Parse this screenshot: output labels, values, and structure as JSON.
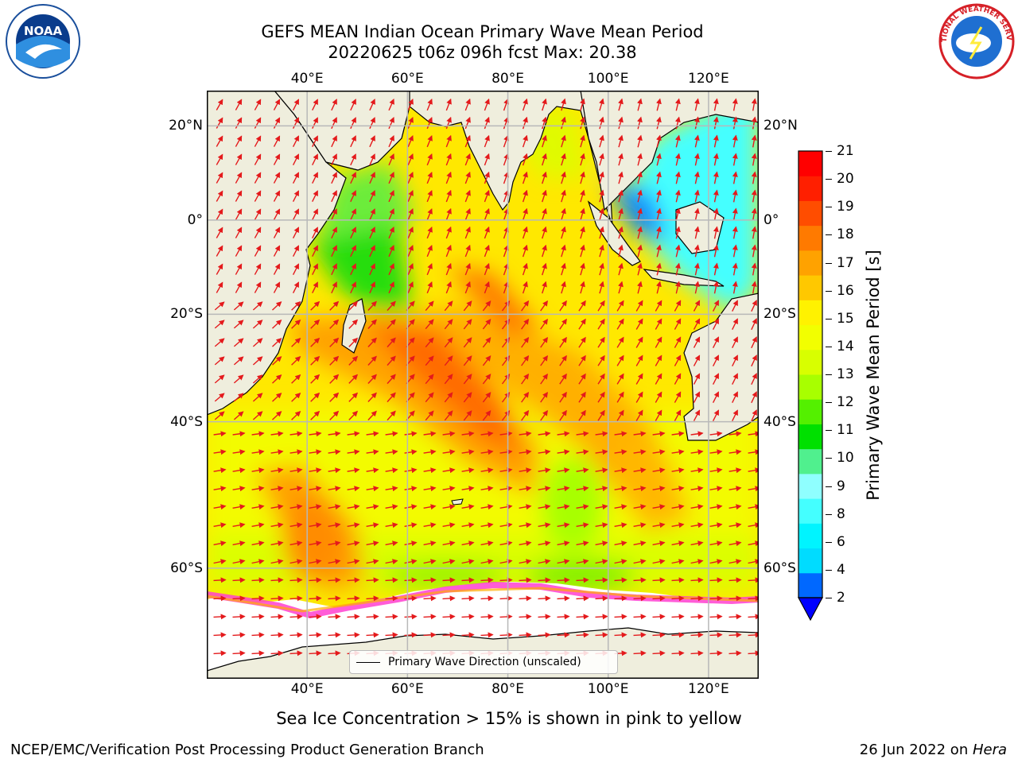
{
  "header": {
    "title_line1": "GEFS MEAN Indian Ocean Primary Wave Mean Period",
    "title_line2": "20220625 t06z 096h fcst   Max: 20.38"
  },
  "logos": {
    "left": "NOAA",
    "right": "NATIONAL WEATHER SERVICE"
  },
  "map": {
    "lon_labels": [
      "40°E",
      "60°E",
      "80°E",
      "100°E",
      "120°E"
    ],
    "lat_labels_left": [
      "20°N",
      "0°",
      "20°S",
      "40°S",
      "60°S"
    ],
    "lat_labels_right": [
      "20°N",
      "0°",
      "20°S",
      "40°S",
      "60°S"
    ],
    "lon_values": [
      40,
      60,
      80,
      100,
      120
    ],
    "lat_values": [
      20,
      0,
      -20,
      -40,
      -60
    ],
    "extent": {
      "lon": [
        20,
        130
      ],
      "lat": [
        -70,
        27
      ]
    },
    "legend_label": "Primary Wave Direction (unscaled)",
    "colors": {
      "land": "#efeedd",
      "ice": "#ffffff",
      "arrow": "#e41a1c",
      "grid": "#b8b8b8"
    }
  },
  "colorbar": {
    "label": "Primary Wave Mean Period [s]",
    "ticks": [
      "21",
      "20",
      "19",
      "18",
      "17",
      "16",
      "15",
      "14",
      "13",
      "12",
      "11",
      "10",
      "9",
      "8",
      "6",
      "4",
      "2"
    ],
    "colors_bottom_to_top": [
      "#0068ff",
      "#00dcff",
      "#00f4ff",
      "#44ffff",
      "#8fffff",
      "#50f08e",
      "#00e000",
      "#54f000",
      "#a8ff00",
      "#d8ff00",
      "#f2ff00",
      "#fff200",
      "#ffc800",
      "#ffa200",
      "#ff7a00",
      "#ff4d00",
      "#ff1f00",
      "#ff0000"
    ],
    "extend_color": "#0000ff"
  },
  "footer": {
    "note": "Sea Ice Concentration > 15% is shown in pink to yellow",
    "credit": "NCEP/EMC/Verification Post Processing Product Generation Branch",
    "date": "26 Jun 2022 on ",
    "machine": "Hera"
  }
}
